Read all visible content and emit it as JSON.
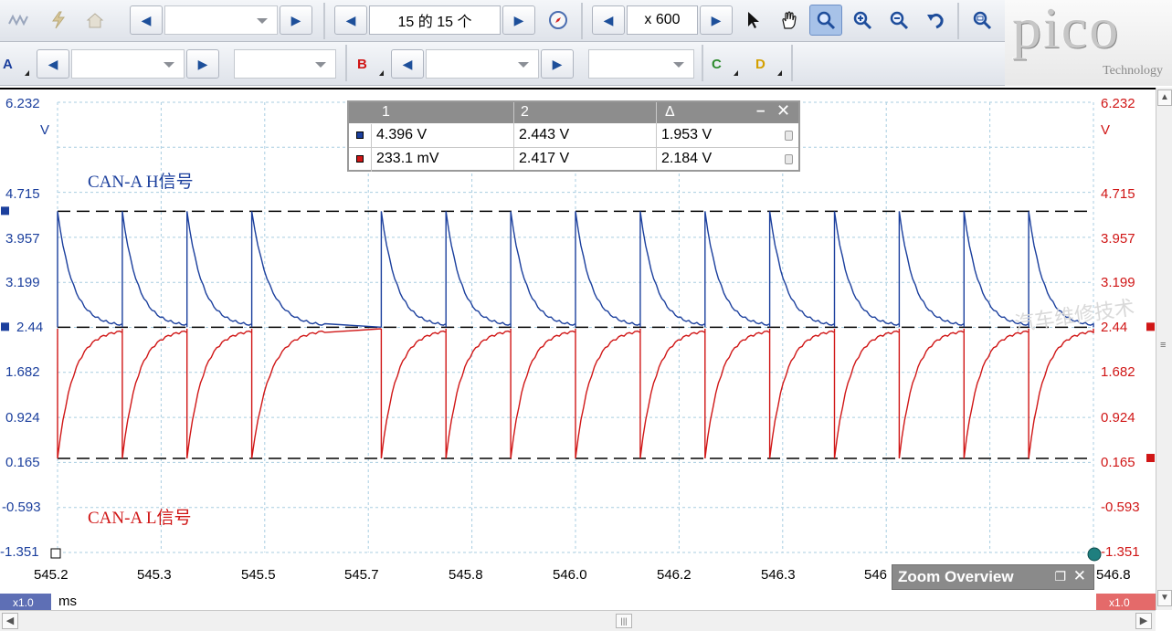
{
  "toolbar_top": {
    "capture_counter": "15 的 15 个",
    "zoom_factor": "x 600",
    "icons": [
      "waveform-icon",
      "lightning-icon",
      "home-icon",
      "compass-icon",
      "pointer-icon",
      "hand-icon",
      "zoom-select-icon",
      "zoom-in-icon",
      "zoom-out-icon",
      "undo-zoom-icon",
      "zoom-overview-icon"
    ]
  },
  "toolbar_channels": {
    "channels": [
      {
        "letter": "A",
        "color": "#1b3f9d"
      },
      {
        "letter": "B",
        "color": "#d01616"
      },
      {
        "letter": "C",
        "color": "#2e8b2e"
      },
      {
        "letter": "D",
        "color": "#d4a000"
      }
    ]
  },
  "logo": {
    "word": "pico",
    "subtitle": "Technology"
  },
  "rulers_panel": {
    "headers": [
      "1",
      "2",
      "Δ"
    ],
    "rows": [
      {
        "color": "#1b3f9d",
        "v1": "4.396 V",
        "v2": "2.443 V",
        "delta": "1.953 V"
      },
      {
        "color": "#d01616",
        "v1": "233.1 mV",
        "v2": "2.417 V",
        "delta": "2.184 V"
      }
    ]
  },
  "annotations": {
    "can_h": "CAN-A H信号",
    "can_l": "CAN-A L信号",
    "watermark": "汽车维修技术"
  },
  "axes": {
    "unit": "V",
    "y_ticks": [
      "6.232",
      "4.715",
      "3.957",
      "3.199",
      "2.44",
      "1.682",
      "0.924",
      "0.165",
      "-0.593",
      "-1.351"
    ],
    "x_ticks": [
      "545.2",
      "545.3",
      "545.5",
      "545.7",
      "545.8",
      "546.0",
      "546.2",
      "546.3",
      "546",
      "546.8"
    ],
    "x_unit": "ms",
    "x_scale_label": "x1.0",
    "right_scale_label": "x1.0"
  },
  "zoom_overview": {
    "title": "Zoom Overview"
  },
  "colors": {
    "channel_a": "#1b3f9d",
    "channel_b": "#d01616",
    "grid": "#a9cde0",
    "ruler": "#000000"
  },
  "chart_data": {
    "type": "line",
    "title": "",
    "xlabel": "ms",
    "ylabel": "V",
    "xlim": [
      545.2,
      546.8
    ],
    "ylim": [
      -1.351,
      6.232
    ],
    "grid": true,
    "series": [
      {
        "name": "CAN-A H信号",
        "color": "#1b3f9d",
        "pulse_times": [
          545.2,
          545.3,
          545.4,
          545.5,
          545.7,
          545.8,
          545.9,
          546.0,
          546.1,
          546.2,
          546.3,
          546.4,
          546.5,
          546.6,
          546.7
        ],
        "peak": 4.396,
        "baseline": 2.443
      },
      {
        "name": "CAN-A L信号",
        "color": "#d01616",
        "pulse_times": [
          545.2,
          545.3,
          545.4,
          545.5,
          545.7,
          545.8,
          545.9,
          546.0,
          546.1,
          546.2,
          546.3,
          546.4,
          546.5,
          546.6,
          546.7
        ],
        "trough": 0.233,
        "baseline": 2.417
      }
    ],
    "rulers": [
      4.396,
      2.443,
      0.233
    ]
  }
}
